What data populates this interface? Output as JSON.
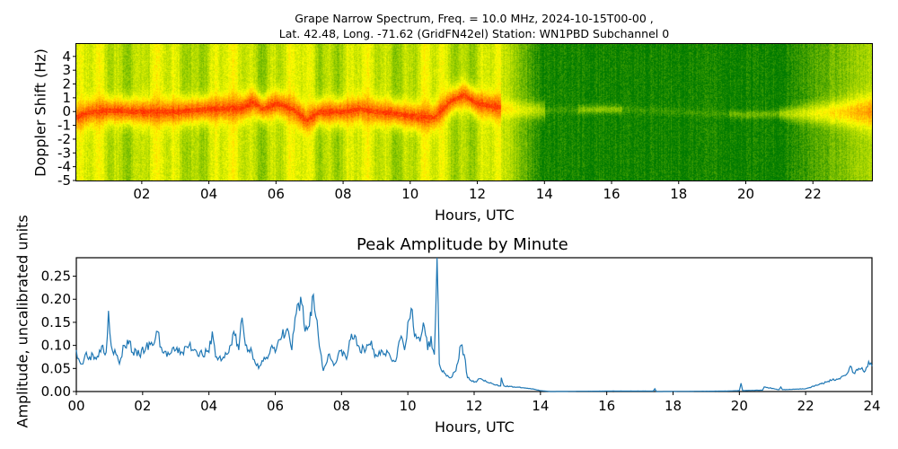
{
  "chart_data": [
    {
      "type": "heatmap",
      "title_line1": "Grape Narrow Spectrum, Freq. = 10.0 MHz, 2024-10-15T00-00 ,",
      "title_line2": "Lat.  42.48, Long. -71.62 (GridFN42el) Station: WN1PBD Subchannel 0",
      "xlabel": "Hours, UTC",
      "ylabel": "Doppler Shift (Hz)",
      "xlim": [
        0.05,
        23.76
      ],
      "ylim": [
        -5,
        4.9
      ],
      "xticks": [
        "02",
        "04",
        "06",
        "08",
        "10",
        "12",
        "14",
        "16",
        "18",
        "20",
        "22"
      ],
      "yticks": [
        "4",
        "3",
        "2",
        "1",
        "0",
        "-1",
        "-2",
        "-3",
        "-4",
        "-5"
      ],
      "colormap": [
        "#007a00",
        "#8cc800",
        "#ffff00",
        "#ff9600",
        "#ff0000"
      ],
      "ridge_hz": [
        [
          0,
          -0.4
        ],
        [
          0.5,
          0.0
        ],
        [
          1,
          0.1
        ],
        [
          2,
          0.0
        ],
        [
          3,
          0.0
        ],
        [
          4,
          0.2
        ],
        [
          5,
          0.3
        ],
        [
          5.3,
          0.7
        ],
        [
          5.6,
          0.2
        ],
        [
          6,
          0.6
        ],
        [
          6.5,
          0.2
        ],
        [
          6.9,
          -0.6
        ],
        [
          7.3,
          0.0
        ],
        [
          8,
          0.0
        ],
        [
          8.5,
          0.2
        ],
        [
          9,
          0.0
        ],
        [
          9.5,
          -0.1
        ],
        [
          10,
          -0.3
        ],
        [
          10.7,
          -0.4
        ],
        [
          11.2,
          0.8
        ],
        [
          11.6,
          1.2
        ],
        [
          12,
          0.6
        ],
        [
          13,
          0.2
        ],
        [
          14,
          0.1
        ],
        [
          16,
          0.2
        ],
        [
          20,
          -0.2
        ],
        [
          22,
          -0.1
        ],
        [
          23.8,
          0.0
        ]
      ]
    },
    {
      "type": "line",
      "title": "Peak Amplitude by Minute",
      "xlabel": "Hours, UTC",
      "ylabel": "Amplitude, uncalibrated units",
      "xlim": [
        0,
        24
      ],
      "ylim": [
        0,
        0.29
      ],
      "xticks": [
        "00",
        "02",
        "04",
        "06",
        "08",
        "10",
        "12",
        "14",
        "16",
        "18",
        "20",
        "22",
        "24"
      ],
      "yticks": [
        "0.00",
        "0.05",
        "0.10",
        "0.15",
        "0.20",
        "0.25"
      ],
      "color": "#1f77b4",
      "points": [
        [
          0.0,
          0.09
        ],
        [
          0.1,
          0.065
        ],
        [
          0.2,
          0.06
        ],
        [
          0.3,
          0.085
        ],
        [
          0.4,
          0.075
        ],
        [
          0.5,
          0.08
        ],
        [
          0.6,
          0.07
        ],
        [
          0.7,
          0.09
        ],
        [
          0.8,
          0.1
        ],
        [
          0.9,
          0.085
        ],
        [
          0.97,
          0.175
        ],
        [
          1.05,
          0.1
        ],
        [
          1.2,
          0.08
        ],
        [
          1.3,
          0.06
        ],
        [
          1.45,
          0.1
        ],
        [
          1.6,
          0.11
        ],
        [
          1.7,
          0.085
        ],
        [
          1.9,
          0.08
        ],
        [
          2.1,
          0.095
        ],
        [
          2.3,
          0.1
        ],
        [
          2.45,
          0.13
        ],
        [
          2.6,
          0.085
        ],
        [
          2.8,
          0.08
        ],
        [
          3.0,
          0.09
        ],
        [
          3.2,
          0.085
        ],
        [
          3.4,
          0.1
        ],
        [
          3.6,
          0.09
        ],
        [
          3.8,
          0.08
        ],
        [
          4.0,
          0.085
        ],
        [
          4.1,
          0.13
        ],
        [
          4.2,
          0.075
        ],
        [
          4.4,
          0.07
        ],
        [
          4.6,
          0.085
        ],
        [
          4.75,
          0.13
        ],
        [
          4.9,
          0.09
        ],
        [
          5.0,
          0.16
        ],
        [
          5.1,
          0.1
        ],
        [
          5.3,
          0.085
        ],
        [
          5.5,
          0.05
        ],
        [
          5.7,
          0.07
        ],
        [
          5.9,
          0.1
        ],
        [
          6.0,
          0.085
        ],
        [
          6.2,
          0.12
        ],
        [
          6.4,
          0.13
        ],
        [
          6.5,
          0.09
        ],
        [
          6.6,
          0.16
        ],
        [
          6.8,
          0.19
        ],
        [
          6.9,
          0.13
        ],
        [
          7.0,
          0.14
        ],
        [
          7.15,
          0.21
        ],
        [
          7.3,
          0.12
        ],
        [
          7.45,
          0.045
        ],
        [
          7.6,
          0.08
        ],
        [
          7.8,
          0.06
        ],
        [
          8.0,
          0.09
        ],
        [
          8.15,
          0.07
        ],
        [
          8.3,
          0.125
        ],
        [
          8.5,
          0.1
        ],
        [
          8.7,
          0.085
        ],
        [
          8.9,
          0.11
        ],
        [
          9.0,
          0.075
        ],
        [
          9.2,
          0.09
        ],
        [
          9.4,
          0.085
        ],
        [
          9.6,
          0.065
        ],
        [
          9.8,
          0.12
        ],
        [
          9.9,
          0.09
        ],
        [
          10.1,
          0.18
        ],
        [
          10.2,
          0.12
        ],
        [
          10.4,
          0.12
        ],
        [
          10.5,
          0.14
        ],
        [
          10.6,
          0.09
        ],
        [
          10.7,
          0.12
        ],
        [
          10.8,
          0.08
        ],
        [
          10.88,
          0.29
        ],
        [
          10.95,
          0.06
        ],
        [
          11.1,
          0.04
        ],
        [
          11.3,
          0.03
        ],
        [
          11.45,
          0.045
        ],
        [
          11.6,
          0.1
        ],
        [
          11.7,
          0.08
        ],
        [
          11.8,
          0.03
        ],
        [
          12.0,
          0.02
        ],
        [
          12.2,
          0.028
        ],
        [
          12.4,
          0.02
        ],
        [
          12.6,
          0.015
        ],
        [
          12.8,
          0.012
        ],
        [
          12.82,
          0.03
        ],
        [
          12.9,
          0.012
        ],
        [
          13.2,
          0.01
        ],
        [
          13.5,
          0.008
        ],
        [
          13.8,
          0.005
        ],
        [
          14.0,
          0.002
        ],
        [
          14.3,
          0.0
        ],
        [
          16,
          0.001
        ],
        [
          17.4,
          0.001
        ],
        [
          17.45,
          0.006
        ],
        [
          17.5,
          0.0
        ],
        [
          19.6,
          0.001
        ],
        [
          20.0,
          0.002
        ],
        [
          20.05,
          0.018
        ],
        [
          20.1,
          0.002
        ],
        [
          20.7,
          0.003
        ],
        [
          20.75,
          0.01
        ],
        [
          21.2,
          0.004
        ],
        [
          21.25,
          0.01
        ],
        [
          21.3,
          0.004
        ],
        [
          22,
          0.006
        ],
        [
          22.4,
          0.015
        ],
        [
          22.8,
          0.025
        ],
        [
          23.0,
          0.028
        ],
        [
          23.2,
          0.035
        ],
        [
          23.35,
          0.055
        ],
        [
          23.45,
          0.04
        ],
        [
          23.6,
          0.05
        ],
        [
          23.8,
          0.045
        ],
        [
          23.9,
          0.065
        ],
        [
          24,
          0.055
        ]
      ]
    }
  ]
}
